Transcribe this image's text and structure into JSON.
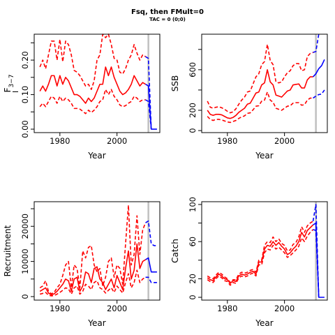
{
  "figure": {
    "title": "Fsq, then FMult=0",
    "subtitle": "TAC = 0 (0;0)",
    "colors": {
      "history": "#ff0000",
      "projection": "#0000ff",
      "marker": "#c0c0c0",
      "axis": "#000000"
    },
    "style": {
      "median": "solid",
      "interval": "dashed"
    }
  },
  "chart_data": [
    {
      "type": "line",
      "panel": "top-left",
      "xlabel": "Year",
      "ylabel": "F̄3−7",
      "ylabel_main": "F",
      "ylabel_sub": "3−7",
      "xlim": [
        1971,
        2015
      ],
      "ylim": [
        -0.01,
        0.275
      ],
      "xticks": [
        1980,
        2000
      ],
      "xtick_labels": [
        "1980",
        "2000"
      ],
      "yticks": [
        0.0,
        0.1,
        0.2
      ],
      "ytick_labels": [
        "0.00",
        "0.10",
        "0.20"
      ],
      "minor_yticks": [
        0.05,
        0.15,
        0.25
      ],
      "marker_year": 2011,
      "x": [
        1973,
        1974,
        1975,
        1976,
        1977,
        1978,
        1979,
        1980,
        1981,
        1982,
        1983,
        1984,
        1985,
        1986,
        1987,
        1988,
        1989,
        1990,
        1991,
        1992,
        1993,
        1994,
        1995,
        1996,
        1997,
        1998,
        1999,
        2000,
        2001,
        2002,
        2003,
        2004,
        2005,
        2006,
        2007,
        2008,
        2009,
        2010
      ],
      "series": [
        {
          "role": "history",
          "style": "median",
          "values": [
            0.11,
            0.125,
            0.11,
            0.13,
            0.155,
            0.155,
            0.125,
            0.155,
            0.13,
            0.15,
            0.14,
            0.12,
            0.1,
            0.1,
            0.095,
            0.085,
            0.075,
            0.09,
            0.08,
            0.09,
            0.11,
            0.13,
            0.13,
            0.18,
            0.155,
            0.18,
            0.15,
            0.13,
            0.11,
            0.1,
            0.105,
            0.115,
            0.13,
            0.155,
            0.14,
            0.125,
            0.135,
            0.13
          ]
        },
        {
          "role": "history",
          "style": "upper",
          "values": [
            0.18,
            0.2,
            0.175,
            0.215,
            0.255,
            0.255,
            0.2,
            0.26,
            0.195,
            0.255,
            0.245,
            0.215,
            0.17,
            0.165,
            0.155,
            0.14,
            0.125,
            0.13,
            0.115,
            0.14,
            0.2,
            0.215,
            0.275,
            0.265,
            0.275,
            0.245,
            0.205,
            0.2,
            0.165,
            0.16,
            0.175,
            0.2,
            0.215,
            0.245,
            0.22,
            0.2,
            0.215,
            0.21
          ]
        },
        {
          "role": "history",
          "style": "lower",
          "values": [
            0.065,
            0.075,
            0.065,
            0.08,
            0.095,
            0.09,
            0.075,
            0.095,
            0.08,
            0.09,
            0.085,
            0.075,
            0.06,
            0.06,
            0.058,
            0.052,
            0.045,
            0.055,
            0.048,
            0.055,
            0.065,
            0.08,
            0.085,
            0.115,
            0.1,
            0.115,
            0.095,
            0.085,
            0.07,
            0.065,
            0.068,
            0.075,
            0.08,
            0.095,
            0.09,
            0.08,
            0.085,
            0.085
          ]
        },
        {
          "role": "projection",
          "style": "median",
          "x": [
            2010,
            2011,
            2012,
            2013,
            2014
          ],
          "values": [
            0.13,
            0.125,
            0.0,
            0.0,
            0.0
          ]
        },
        {
          "role": "projection",
          "style": "upper",
          "x": [
            2010,
            2011,
            2012
          ],
          "values": [
            0.21,
            0.205,
            0.0
          ]
        },
        {
          "role": "projection",
          "style": "lower",
          "x": [
            2010,
            2011,
            2012
          ],
          "values": [
            0.085,
            0.08,
            0.0
          ]
        }
      ]
    },
    {
      "type": "line",
      "panel": "top-right",
      "xlabel": "Year",
      "ylabel": "SSB",
      "xlim": [
        1971,
        2015
      ],
      "ylim": [
        -20,
        950
      ],
      "xticks": [
        1980,
        2000
      ],
      "xtick_labels": [
        "1980",
        "2000"
      ],
      "yticks": [
        0,
        200,
        600
      ],
      "ytick_labels": [
        "0",
        "200",
        "600"
      ],
      "minor_yticks": [
        400,
        800
      ],
      "marker_year": 2011,
      "x": [
        1973,
        1974,
        1975,
        1976,
        1977,
        1978,
        1979,
        1980,
        1981,
        1982,
        1983,
        1984,
        1985,
        1986,
        1987,
        1988,
        1989,
        1990,
        1991,
        1992,
        1993,
        1994,
        1995,
        1996,
        1997,
        1998,
        1999,
        2000,
        2001,
        2002,
        2003,
        2004,
        2005,
        2006,
        2007,
        2008,
        2009,
        2010
      ],
      "series": [
        {
          "role": "history",
          "style": "median",
          "values": [
            200,
            160,
            150,
            160,
            160,
            155,
            140,
            125,
            120,
            130,
            150,
            180,
            200,
            220,
            260,
            270,
            320,
            370,
            380,
            450,
            470,
            600,
            480,
            450,
            350,
            340,
            330,
            360,
            390,
            400,
            450,
            455,
            460,
            420,
            420,
            500,
            530,
            530
          ]
        },
        {
          "role": "history",
          "style": "upper",
          "values": [
            290,
            230,
            220,
            230,
            235,
            225,
            210,
            190,
            175,
            185,
            215,
            260,
            300,
            330,
            380,
            390,
            460,
            530,
            560,
            650,
            680,
            850,
            690,
            650,
            480,
            470,
            480,
            530,
            570,
            590,
            640,
            660,
            660,
            590,
            600,
            730,
            760,
            770
          ]
        },
        {
          "role": "history",
          "style": "lower",
          "values": [
            140,
            110,
            100,
            110,
            110,
            105,
            95,
            85,
            80,
            90,
            100,
            120,
            135,
            145,
            170,
            175,
            205,
            240,
            245,
            290,
            300,
            380,
            300,
            280,
            220,
            210,
            200,
            220,
            240,
            245,
            270,
            275,
            275,
            250,
            255,
            300,
            320,
            320
          ]
        },
        {
          "role": "projection",
          "style": "median",
          "x": [
            2010,
            2011,
            2012,
            2013,
            2014
          ],
          "values": [
            530,
            560,
            610,
            640,
            700
          ]
        },
        {
          "role": "projection",
          "style": "upper",
          "x": [
            2010,
            2011,
            2012
          ],
          "values": [
            770,
            780,
            950
          ]
        },
        {
          "role": "projection",
          "style": "lower",
          "x": [
            2010,
            2011,
            2012,
            2013,
            2014
          ],
          "values": [
            320,
            340,
            355,
            360,
            400
          ]
        }
      ]
    },
    {
      "type": "line",
      "panel": "bottom-left",
      "xlabel": "Year",
      "ylabel": "Recruitment",
      "xlim": [
        1971,
        2015
      ],
      "ylim": [
        -1000,
        27000
      ],
      "xticks": [
        1980,
        2000
      ],
      "xtick_labels": [
        "1980",
        "2000"
      ],
      "yticks": [
        0,
        10000,
        20000
      ],
      "ytick_labels": [
        "0",
        "10000",
        "20000"
      ],
      "minor_yticks": [
        5000,
        15000,
        25000
      ],
      "marker_year": 2011,
      "x": [
        1973,
        1974,
        1975,
        1976,
        1977,
        1978,
        1979,
        1980,
        1981,
        1982,
        1983,
        1984,
        1985,
        1986,
        1987,
        1988,
        1989,
        1990,
        1991,
        1992,
        1993,
        1994,
        1995,
        1996,
        1997,
        1998,
        1999,
        2000,
        2001,
        2002,
        2003,
        2004,
        2005,
        2006,
        2007,
        2008,
        2009,
        2010
      ],
      "series": [
        {
          "role": "history",
          "style": "median",
          "values": [
            1500,
            2000,
            2500,
            1000,
            500,
            800,
            1500,
            2500,
            3500,
            5000,
            4500,
            1500,
            5000,
            5500,
            1500,
            3000,
            7000,
            6500,
            4000,
            8000,
            8500,
            5000,
            4000,
            2000,
            3500,
            5000,
            2500,
            6000,
            4000,
            2000,
            8000,
            13000,
            5000,
            7500,
            15000,
            8000,
            10000,
            10500
          ]
        },
        {
          "role": "history",
          "style": "upper",
          "values": [
            2500,
            3000,
            4500,
            1500,
            800,
            1200,
            2500,
            3500,
            6000,
            9000,
            10000,
            2500,
            9000,
            8000,
            2500,
            13000,
            11000,
            14000,
            14500,
            9000,
            7000,
            8000,
            3000,
            5500,
            10000,
            11000,
            5500,
            9000,
            8000,
            3500,
            15000,
            26000,
            9000,
            12000,
            23000,
            12000,
            19000,
            21000
          ]
        },
        {
          "role": "history",
          "style": "lower",
          "values": [
            700,
            900,
            1200,
            400,
            200,
            300,
            700,
            1200,
            1800,
            2500,
            2200,
            700,
            2500,
            3000,
            700,
            1500,
            3500,
            3000,
            2000,
            4000,
            4500,
            2500,
            2000,
            1000,
            1800,
            2500,
            1200,
            3000,
            2000,
            1000,
            4000,
            6500,
            2500,
            4000,
            7500,
            4000,
            5000,
            5500
          ]
        },
        {
          "role": "projection",
          "style": "median",
          "x": [
            2010,
            2011,
            2012,
            2013,
            2014
          ],
          "values": [
            10500,
            11000,
            7000,
            7000,
            7000
          ]
        },
        {
          "role": "projection",
          "style": "upper",
          "x": [
            2010,
            2011,
            2012,
            2013,
            2014
          ],
          "values": [
            21000,
            21500,
            15000,
            14500,
            14500
          ]
        },
        {
          "role": "projection",
          "style": "lower",
          "x": [
            2010,
            2011,
            2012,
            2013,
            2014
          ],
          "values": [
            5500,
            5500,
            4000,
            4000,
            4000
          ]
        }
      ]
    },
    {
      "type": "line",
      "panel": "bottom-right",
      "xlabel": "Year",
      "ylabel": "Catch",
      "xlim": [
        1971,
        2015
      ],
      "ylim": [
        -3,
        103
      ],
      "xticks": [
        1980,
        2000
      ],
      "xtick_labels": [
        "1980",
        "2000"
      ],
      "yticks": [
        0,
        20,
        60,
        100
      ],
      "ytick_labels": [
        "0",
        "20",
        "60",
        "100"
      ],
      "minor_yticks": [
        40,
        80
      ],
      "marker_year": 2011,
      "x": [
        1973,
        1974,
        1975,
        1976,
        1977,
        1978,
        1979,
        1980,
        1981,
        1982,
        1983,
        1984,
        1985,
        1986,
        1987,
        1988,
        1989,
        1990,
        1991,
        1992,
        1993,
        1994,
        1995,
        1996,
        1997,
        1998,
        1999,
        2000,
        2001,
        2002,
        2003,
        2004,
        2005,
        2006,
        2007,
        2008,
        2009,
        2010
      ],
      "series": [
        {
          "role": "history",
          "style": "median",
          "values": [
            21,
            19,
            18,
            22,
            25,
            23,
            20,
            19,
            15,
            18,
            17,
            23,
            25,
            24,
            25,
            27,
            28,
            25,
            38,
            38,
            52,
            56,
            55,
            60,
            56,
            59,
            55,
            52,
            46,
            48,
            52,
            55,
            60,
            70,
            65,
            72,
            75,
            78
          ]
        },
        {
          "role": "history",
          "style": "upper",
          "values": [
            23,
            21,
            20,
            24,
            27,
            25,
            22,
            20,
            16,
            19,
            19,
            25,
            27,
            26,
            27,
            29,
            30,
            27,
            40,
            40,
            56,
            60,
            59,
            65,
            60,
            63,
            58,
            56,
            50,
            51,
            57,
            59,
            65,
            76,
            70,
            77,
            80,
            82
          ]
        },
        {
          "role": "history",
          "style": "lower",
          "values": [
            19,
            17,
            16,
            20,
            23,
            21,
            18,
            17,
            13,
            16,
            15,
            21,
            23,
            22,
            23,
            25,
            26,
            23,
            35,
            35,
            48,
            52,
            51,
            56,
            52,
            54,
            51,
            48,
            43,
            45,
            48,
            51,
            55,
            64,
            60,
            66,
            70,
            73
          ]
        },
        {
          "role": "projection",
          "style": "median",
          "x": [
            2010,
            2011,
            2012,
            2013,
            2014
          ],
          "values": [
            78,
            80,
            0,
            0,
            0
          ]
        },
        {
          "role": "projection",
          "style": "upper",
          "x": [
            2010,
            2011,
            2012
          ],
          "values": [
            82,
            100,
            0
          ]
        },
        {
          "role": "projection",
          "style": "lower",
          "x": [
            2010,
            2011,
            2012
          ],
          "values": [
            73,
            72,
            0
          ]
        }
      ]
    }
  ]
}
